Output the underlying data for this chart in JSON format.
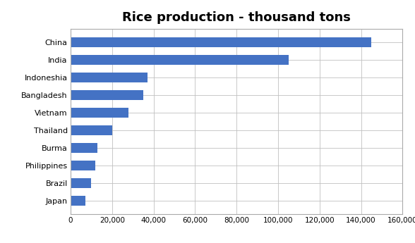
{
  "title": "Rice production - thousand tons",
  "countries": [
    "Japan",
    "Brazil",
    "Philippines",
    "Burma",
    "Thailand",
    "Vietnam",
    "Bangladesh",
    "Indoneshia",
    "India",
    "China"
  ],
  "values": [
    7000,
    10000,
    12000,
    13000,
    20000,
    28000,
    35000,
    37000,
    105000,
    145000
  ],
  "bar_color": "#4472C4",
  "xlim": [
    0,
    160000
  ],
  "xtick_step": 20000,
  "background_color": "#ffffff",
  "grid_color": "#c0c0c0",
  "title_fontsize": 13,
  "label_fontsize": 8,
  "tick_fontsize": 7.5
}
